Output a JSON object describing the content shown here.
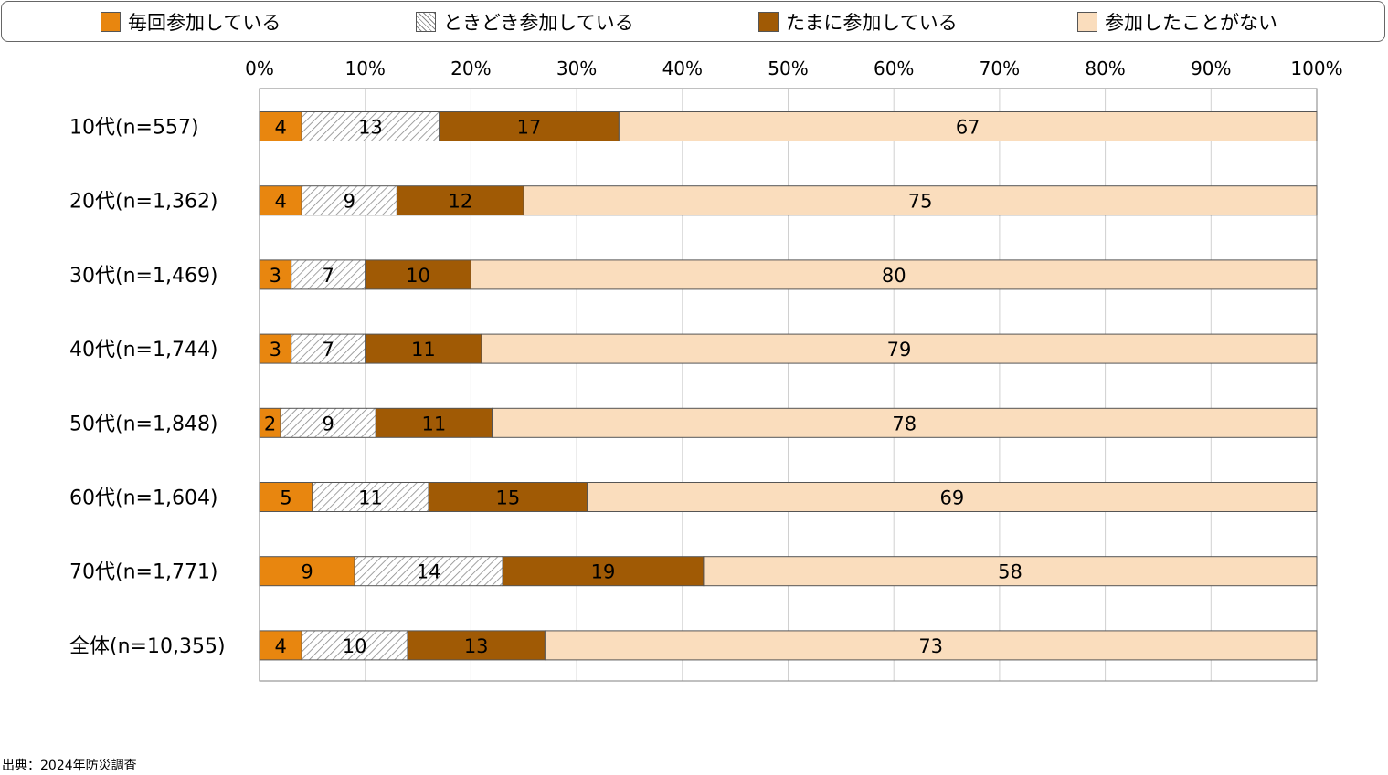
{
  "chart_data": {
    "type": "bar",
    "orientation": "horizontal",
    "stacked": true,
    "percent_stacked": true,
    "categories": [
      "10代(n=557)",
      "20代(n=1,362)",
      "30代(n=1,469)",
      "40代(n=1,744)",
      "50代(n=1,848)",
      "60代(n=1,604)",
      "70代(n=1,771)",
      "全体(n=10,355)"
    ],
    "series": [
      {
        "name": "毎回参加している",
        "color": "#E8860F",
        "pattern": "solid",
        "values": [
          4,
          4,
          3,
          3,
          2,
          5,
          9,
          4
        ]
      },
      {
        "name": "ときどき参加している",
        "color": "#FFFFFF",
        "pattern": "hatch",
        "values": [
          13,
          9,
          7,
          7,
          9,
          11,
          14,
          10
        ]
      },
      {
        "name": "たまに参加している",
        "color": "#A05A05",
        "pattern": "solid",
        "values": [
          17,
          12,
          10,
          11,
          11,
          15,
          19,
          13
        ]
      },
      {
        "name": "参加したことがない",
        "color": "#FADDBD",
        "pattern": "solid",
        "values": [
          67,
          75,
          80,
          79,
          78,
          69,
          58,
          73
        ]
      }
    ],
    "xlim": [
      0,
      100
    ],
    "x_ticks": [
      "0%",
      "10%",
      "20%",
      "30%",
      "40%",
      "50%",
      "60%",
      "70%",
      "80%",
      "90%",
      "100%"
    ],
    "grid": true,
    "legend_position": "top"
  },
  "source": "出典：2024年防災調査"
}
